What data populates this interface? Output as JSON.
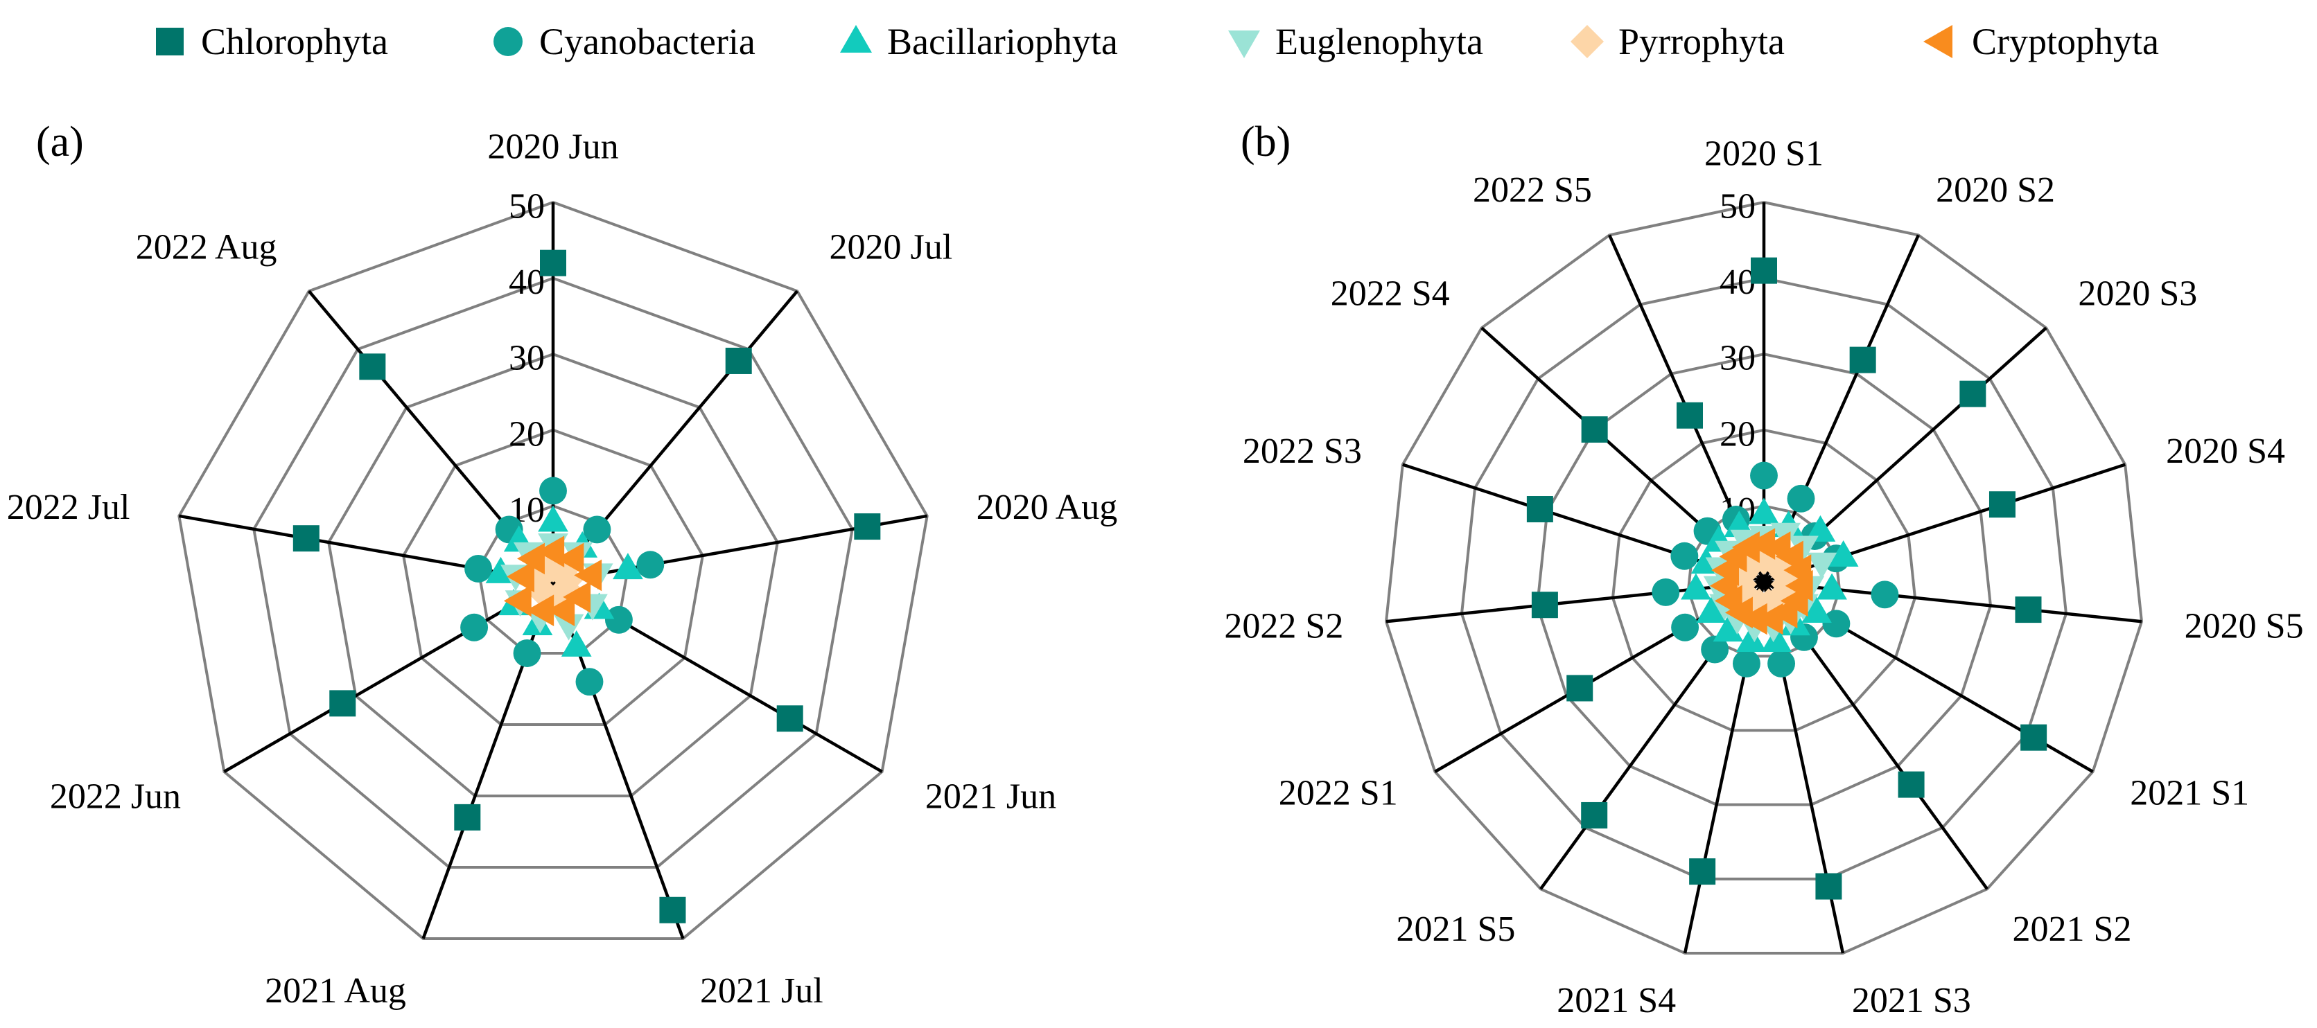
{
  "colors": {
    "chlorophyta": "#00756a",
    "cyanobacteria": "#10a297",
    "bacillariophyta": "#12cbbd",
    "euglenophyta": "#9be3d6",
    "pyrrophyta": "#fdd6a8",
    "cryptophyta": "#f98c1e",
    "ring": "#808080",
    "spoke": "#000000"
  },
  "legend": [
    {
      "key": "chlorophyta",
      "label": "Chlorophyta",
      "marker": "square"
    },
    {
      "key": "cyanobacteria",
      "label": "Cyanobacteria",
      "marker": "circle"
    },
    {
      "key": "bacillariophyta",
      "label": "Bacillariophyta",
      "marker": "triangle-up"
    },
    {
      "key": "euglenophyta",
      "label": "Euglenophyta",
      "marker": "triangle-down"
    },
    {
      "key": "pyrrophyta",
      "label": "Pyrrophyta",
      "marker": "diamond"
    },
    {
      "key": "cryptophyta",
      "label": "Cryptophyta",
      "marker": "triangle-left"
    }
  ],
  "chart_data": [
    {
      "type": "radar",
      "panel_label": "(a)",
      "categories": [
        "2020 Jun",
        "2020 Jul",
        "2020 Aug",
        "2021 Jun",
        "2021 Jul",
        "2021 Aug",
        "2022 Jun",
        "2022 Jul",
        "2022 Aug"
      ],
      "r_ticks": [
        10,
        20,
        30,
        40,
        50
      ],
      "rlim": [
        0,
        50
      ],
      "grid": true,
      "series": [
        {
          "key": "chlorophyta",
          "name": "Chlorophyta",
          "marker": "square",
          "values": [
            42,
            38,
            42,
            36,
            46,
            33,
            32,
            33,
            37
          ]
        },
        {
          "key": "cyanobacteria",
          "name": "Cyanobacteria",
          "marker": "circle",
          "values": [
            12,
            9,
            13,
            10,
            14,
            10,
            12,
            10,
            9
          ]
        },
        {
          "key": "bacillariophyta",
          "name": "Bacillariophyta",
          "marker": "triangle-up",
          "values": [
            8,
            6,
            10,
            7,
            9,
            6,
            6,
            7,
            7
          ]
        },
        {
          "key": "euglenophyta",
          "name": "Euglenophyta",
          "marker": "triangle-down",
          "values": [
            5,
            5,
            6,
            6,
            6,
            5,
            5,
            5,
            5
          ]
        },
        {
          "key": "pyrrophyta",
          "name": "Pyrrophyta",
          "marker": "diamond",
          "values": [
            2,
            2,
            2,
            2,
            2,
            2,
            2,
            2,
            2
          ]
        },
        {
          "key": "cryptophyta",
          "name": "Cryptophyta",
          "marker": "triangle-left",
          "values": [
            4,
            4,
            5,
            4,
            4,
            4,
            5,
            4,
            4
          ]
        }
      ]
    },
    {
      "type": "radar",
      "panel_label": "(b)",
      "categories": [
        "2020 S1",
        "2020 S2",
        "2020 S3",
        "2020 S4",
        "2020 S5",
        "2021 S1",
        "2021 S2",
        "2021 S3",
        "2021 S4",
        "2021 S5",
        "2022 S1",
        "2022 S2",
        "2022 S3",
        "2022 S4",
        "2022 S5"
      ],
      "r_ticks": [
        10,
        20,
        30,
        40,
        50
      ],
      "rlim": [
        0,
        50
      ],
      "grid": true,
      "series": [
        {
          "key": "chlorophyta",
          "name": "Chlorophyta",
          "marker": "square",
          "values": [
            41,
            32,
            37,
            33,
            35,
            41,
            33,
            41,
            39,
            38,
            28,
            29,
            31,
            30,
            24
          ]
        },
        {
          "key": "cyanobacteria",
          "name": "Cyanobacteria",
          "marker": "circle",
          "values": [
            14,
            12,
            9,
            10,
            16,
            11,
            9,
            11,
            11,
            11,
            12,
            13,
            11,
            10,
            9
          ]
        },
        {
          "key": "bacillariophyta",
          "name": "Bacillariophyta",
          "marker": "triangle-up",
          "values": [
            9,
            8,
            10,
            11,
            9,
            8,
            7,
            8,
            8,
            8,
            8,
            9,
            8,
            8,
            8
          ]
        },
        {
          "key": "euglenophyta",
          "name": "Euglenophyta",
          "marker": "triangle-down",
          "values": [
            6,
            7,
            7,
            8,
            6,
            6,
            6,
            6,
            6,
            6,
            6,
            6,
            6,
            6,
            6
          ]
        },
        {
          "key": "pyrrophyta",
          "name": "Pyrrophyta",
          "marker": "diamond",
          "values": [
            3,
            3,
            3,
            3,
            3,
            4,
            3,
            3,
            3,
            3,
            3,
            3,
            3,
            3,
            3
          ]
        },
        {
          "key": "cryptophyta",
          "name": "Cryptophyta",
          "marker": "triangle-left",
          "values": [
            5,
            5,
            5,
            5,
            5,
            5,
            5,
            5,
            5,
            5,
            5,
            5,
            5,
            5,
            5
          ]
        }
      ]
    }
  ]
}
